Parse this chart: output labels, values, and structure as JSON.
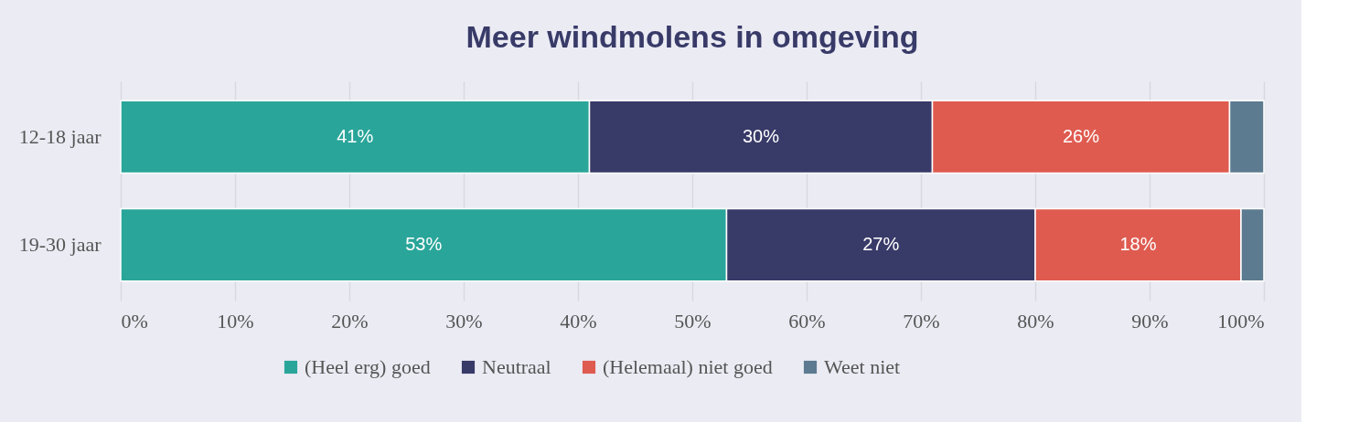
{
  "chart_data": {
    "type": "bar",
    "orientation": "horizontal",
    "stacked": true,
    "title": "Meer windmolens in omgeving",
    "categories": [
      "12-18 jaar",
      "19-30 jaar"
    ],
    "series": [
      {
        "name": "(Heel erg) goed",
        "color": "#2aa59a",
        "values": [
          41,
          53
        ],
        "value_labels": [
          "41%",
          "53%"
        ]
      },
      {
        "name": "Neutraal",
        "color": "#383a68",
        "values": [
          30,
          27
        ],
        "value_labels": [
          "30%",
          "27%"
        ]
      },
      {
        "name": "(Helemaal) niet goed",
        "color": "#df5b50",
        "values": [
          26,
          18
        ],
        "value_labels": [
          "26%",
          "18%"
        ]
      },
      {
        "name": "Weet niet",
        "color": "#5c7a90",
        "values": [
          3,
          2
        ],
        "value_labels": [
          null,
          null
        ]
      }
    ],
    "xlim": [
      0,
      100
    ],
    "xticks": [
      {
        "value": 0,
        "label": "0%"
      },
      {
        "value": 10,
        "label": "10%"
      },
      {
        "value": 20,
        "label": "20%"
      },
      {
        "value": 30,
        "label": "30%"
      },
      {
        "value": 40,
        "label": "40%"
      },
      {
        "value": 50,
        "label": "50%"
      },
      {
        "value": 60,
        "label": "60%"
      },
      {
        "value": 70,
        "label": "70%"
      },
      {
        "value": 80,
        "label": "80%"
      },
      {
        "value": 90,
        "label": "90%"
      },
      {
        "value": 100,
        "label": "100%"
      }
    ],
    "grid": "x",
    "legend": "bottom"
  }
}
